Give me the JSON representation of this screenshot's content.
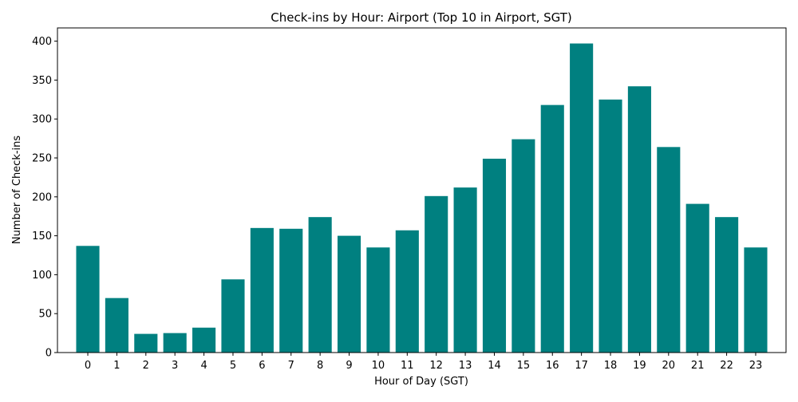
{
  "chart_data": {
    "type": "bar",
    "title": "Check-ins by Hour: Airport (Top 10 in Airport, SGT)",
    "xlabel": "Hour of Day (SGT)",
    "ylabel": "Number of Check-ins",
    "categories": [
      "0",
      "1",
      "2",
      "3",
      "4",
      "5",
      "6",
      "7",
      "8",
      "9",
      "10",
      "11",
      "12",
      "13",
      "14",
      "15",
      "16",
      "17",
      "18",
      "19",
      "20",
      "21",
      "22",
      "23"
    ],
    "values": [
      137,
      70,
      24,
      25,
      32,
      94,
      160,
      159,
      174,
      150,
      135,
      157,
      201,
      212,
      249,
      274,
      318,
      397,
      325,
      342,
      264,
      191,
      174,
      135
    ],
    "ylim": [
      0,
      417
    ],
    "yticks": [
      0,
      50,
      100,
      150,
      200,
      250,
      300,
      350,
      400
    ],
    "bar_color": "#008080",
    "grid": false,
    "legend": "none"
  }
}
